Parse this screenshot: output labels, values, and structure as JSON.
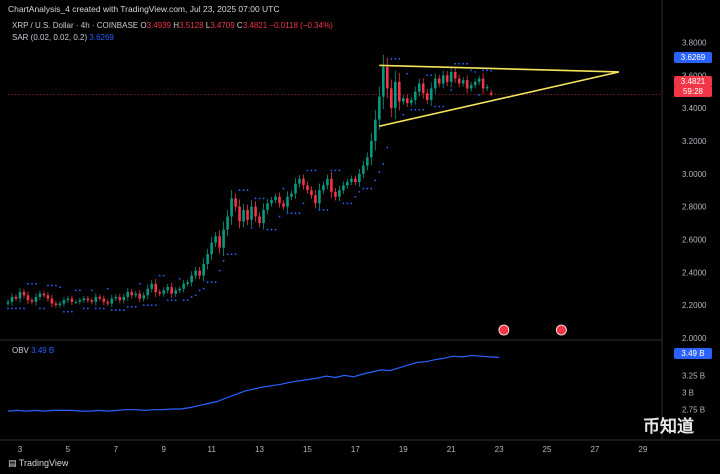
{
  "header": "ChartAnalysis_4 created with TradingView.com, Jul 23, 2025 07:00 UTC",
  "legend": {
    "symbol": "XRP / U.S. Dollar · 4h · COINBASE",
    "o_label": "O",
    "o": "3.4939",
    "h_label": "H",
    "h": "3.5128",
    "l_label": "L",
    "l": "3.4709",
    "c_label": "C",
    "c": "3.4821",
    "change": "−0.0118 (−0.34%)",
    "sar_label": "SAR (0.02, 0.02, 0.2)",
    "sar_value": "3.6269",
    "obv_label": "OBV",
    "obv_value": "3.49 B"
  },
  "tags": {
    "sar": "3.6269",
    "price": "3.4821",
    "countdown": "59:28",
    "obv": "3.49 B"
  },
  "footer": {
    "brand": "TradingView",
    "watermark": "币知道"
  },
  "colors": {
    "up": "#089981",
    "down": "#f23645",
    "sar": "#2962ff",
    "obv": "#2962ff",
    "triangle": "#f5e45c"
  },
  "chart_data": [
    {
      "type": "candlestick",
      "title": "XRP / U.S. Dollar · 4h · COINBASE",
      "ylim": [
        2.0,
        3.9
      ],
      "y_ticks": [
        "3.8000",
        "3.6000",
        "3.4000",
        "3.2000",
        "3.0000",
        "2.8000",
        "2.6000",
        "2.4000",
        "2.2000",
        "2.0000"
      ],
      "x_ticks": [
        "3",
        "5",
        "7",
        "9",
        "11",
        "13",
        "15",
        "17",
        "19",
        "21",
        "23",
        "25",
        "27",
        "29"
      ],
      "x_range_days": [
        2.5,
        29.8
      ],
      "bars_per_day": 6,
      "first_bar_day": 2.5,
      "closes": [
        2.22,
        2.25,
        2.24,
        2.28,
        2.26,
        2.23,
        2.22,
        2.25,
        2.27,
        2.26,
        2.24,
        2.21,
        2.2,
        2.21,
        2.23,
        2.24,
        2.22,
        2.22,
        2.23,
        2.24,
        2.23,
        2.22,
        2.25,
        2.24,
        2.22,
        2.21,
        2.24,
        2.25,
        2.23,
        2.25,
        2.28,
        2.26,
        2.27,
        2.24,
        2.26,
        2.3,
        2.33,
        2.28,
        2.27,
        2.29,
        2.31,
        2.27,
        2.29,
        2.3,
        2.33,
        2.34,
        2.38,
        2.41,
        2.38,
        2.45,
        2.51,
        2.58,
        2.62,
        2.55,
        2.66,
        2.74,
        2.85,
        2.8,
        2.71,
        2.78,
        2.72,
        2.8,
        2.74,
        2.7,
        2.78,
        2.82,
        2.84,
        2.86,
        2.82,
        2.8,
        2.86,
        2.88,
        2.94,
        2.97,
        2.93,
        2.9,
        2.87,
        2.82,
        2.9,
        2.93,
        2.97,
        2.89,
        2.86,
        2.9,
        2.93,
        2.95,
        2.97,
        2.95,
        3.0,
        3.05,
        3.1,
        3.2,
        3.33,
        3.47,
        3.65,
        3.52,
        3.4,
        3.56,
        3.44,
        3.46,
        3.43,
        3.45,
        3.5,
        3.55,
        3.49,
        3.45,
        3.52,
        3.58,
        3.55,
        3.6,
        3.56,
        3.62,
        3.58,
        3.55,
        3.57,
        3.52,
        3.54,
        3.56,
        3.58,
        3.52,
        3.53,
        3.48
      ],
      "last": {
        "open": 3.4939,
        "high": 3.5128,
        "low": 3.4709,
        "close": 3.4821
      },
      "parabolic_sar_last": 3.6269,
      "triangle": {
        "upper": [
          [
            18.0,
            3.66
          ],
          [
            28.0,
            3.62
          ]
        ],
        "lower": [
          [
            18.0,
            3.29
          ],
          [
            28.0,
            3.62
          ]
        ]
      }
    },
    {
      "type": "line",
      "title": "OBV",
      "y_ticks": [
        "3.49 B",
        "3.25 B",
        "3 B",
        "2.75 B"
      ],
      "ylim": [
        2.6,
        3.62
      ],
      "series": [
        {
          "name": "OBV",
          "values": [
            2.73,
            2.74,
            2.73,
            2.74,
            2.73,
            2.74,
            2.74,
            2.74,
            2.73,
            2.73,
            2.74,
            2.73,
            2.74,
            2.75,
            2.75,
            2.74,
            2.75,
            2.75,
            2.76,
            2.76,
            2.78,
            2.81,
            2.84,
            2.87,
            2.92,
            2.97,
            3.02,
            3.05,
            3.08,
            3.1,
            3.12,
            3.15,
            3.17,
            3.19,
            3.21,
            3.24,
            3.22,
            3.25,
            3.23,
            3.27,
            3.3,
            3.33,
            3.32,
            3.36,
            3.4,
            3.44,
            3.45,
            3.48,
            3.5,
            3.53,
            3.52,
            3.54,
            3.53,
            3.52,
            3.51
          ]
        }
      ],
      "obv_x_range_days": [
        2.5,
        23.0
      ]
    }
  ]
}
